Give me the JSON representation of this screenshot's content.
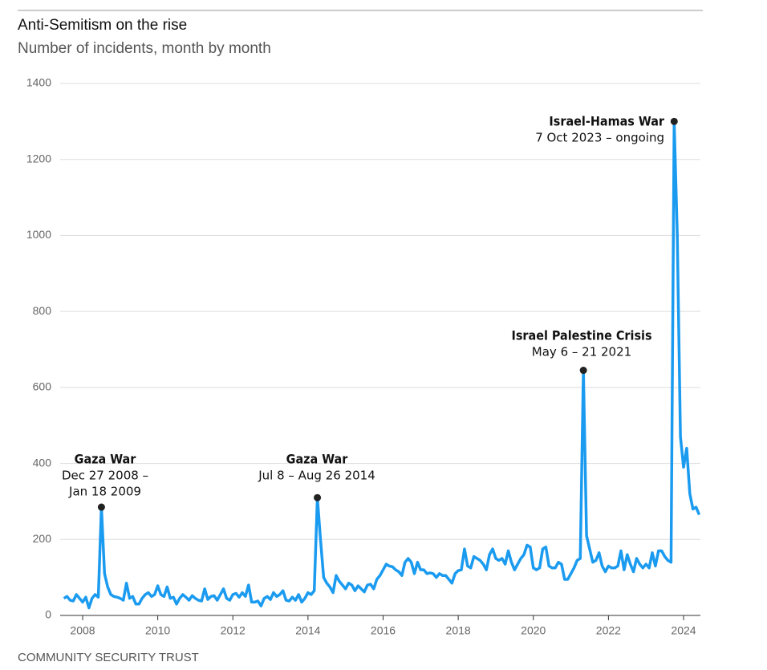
{
  "chart_data": {
    "type": "line",
    "title": "Anti-Semitism on the rise",
    "subtitle": "Number of incidents, month by month",
    "source": "COMMUNITY SECURITY TRUST",
    "xlim": [
      2007.5,
      2024.5
    ],
    "xticks": [
      2008,
      2010,
      2012,
      2014,
      2016,
      2018,
      2020,
      2022,
      2024
    ],
    "ylim": [
      0,
      1400
    ],
    "yticks": [
      0,
      200,
      400,
      600,
      800,
      1000,
      1200,
      1400
    ],
    "grid": true,
    "x": [
      2007.5,
      2007.583,
      2007.667,
      2007.75,
      2007.833,
      2007.917,
      2008,
      2008.083,
      2008.167,
      2008.25,
      2008.333,
      2008.417,
      2008.5,
      2008.583,
      2008.667,
      2008.75,
      2008.833,
      2008.917,
      2009,
      2009.083,
      2009.167,
      2009.25,
      2009.333,
      2009.417,
      2009.5,
      2009.583,
      2009.667,
      2009.75,
      2009.833,
      2009.917,
      2010,
      2010.083,
      2010.167,
      2010.25,
      2010.333,
      2010.417,
      2010.5,
      2010.583,
      2010.667,
      2010.75,
      2010.833,
      2010.917,
      2011,
      2011.083,
      2011.167,
      2011.25,
      2011.333,
      2011.417,
      2011.5,
      2011.583,
      2011.667,
      2011.75,
      2011.833,
      2011.917,
      2012,
      2012.083,
      2012.167,
      2012.25,
      2012.333,
      2012.417,
      2012.5,
      2012.583,
      2012.667,
      2012.75,
      2012.833,
      2012.917,
      2013,
      2013.083,
      2013.167,
      2013.25,
      2013.333,
      2013.417,
      2013.5,
      2013.583,
      2013.667,
      2013.75,
      2013.833,
      2013.917,
      2014,
      2014.083,
      2014.167,
      2014.25,
      2014.333,
      2014.417,
      2014.5,
      2014.583,
      2014.667,
      2014.75,
      2014.833,
      2014.917,
      2015,
      2015.083,
      2015.167,
      2015.25,
      2015.333,
      2015.417,
      2015.5,
      2015.583,
      2015.667,
      2015.75,
      2015.833,
      2015.917,
      2016,
      2016.083,
      2016.167,
      2016.25,
      2016.333,
      2016.417,
      2016.5,
      2016.583,
      2016.667,
      2016.75,
      2016.833,
      2016.917,
      2017,
      2017.083,
      2017.167,
      2017.25,
      2017.333,
      2017.417,
      2017.5,
      2017.583,
      2017.667,
      2017.75,
      2017.833,
      2017.917,
      2018,
      2018.083,
      2018.167,
      2018.25,
      2018.333,
      2018.417,
      2018.5,
      2018.583,
      2018.667,
      2018.75,
      2018.833,
      2018.917,
      2019,
      2019.083,
      2019.167,
      2019.25,
      2019.333,
      2019.417,
      2019.5,
      2019.583,
      2019.667,
      2019.75,
      2019.833,
      2019.917,
      2020,
      2020.083,
      2020.167,
      2020.25,
      2020.333,
      2020.417,
      2020.5,
      2020.583,
      2020.667,
      2020.75,
      2020.833,
      2020.917,
      2021,
      2021.083,
      2021.167,
      2021.25,
      2021.333,
      2021.417,
      2021.5,
      2021.583,
      2021.667,
      2021.75,
      2021.833,
      2021.917,
      2022,
      2022.083,
      2022.167,
      2022.25,
      2022.333,
      2022.417,
      2022.5,
      2022.583,
      2022.667,
      2022.75,
      2022.833,
      2022.917,
      2023,
      2023.083,
      2023.167,
      2023.25,
      2023.333,
      2023.417,
      2023.5,
      2023.583,
      2023.667,
      2023.75,
      2023.833,
      2023.917,
      2024,
      2024.083,
      2024.167,
      2024.25,
      2024.333,
      2024.417
    ],
    "series": [
      {
        "color": "#1b9bf0",
        "values": [
          45,
          50,
          40,
          38,
          55,
          45,
          35,
          48,
          20,
          45,
          55,
          48,
          285,
          110,
          75,
          55,
          50,
          48,
          45,
          40,
          85,
          45,
          50,
          30,
          30,
          45,
          55,
          60,
          50,
          55,
          78,
          55,
          50,
          75,
          45,
          48,
          30,
          45,
          55,
          48,
          40,
          52,
          45,
          40,
          38,
          70,
          42,
          50,
          52,
          40,
          55,
          70,
          45,
          40,
          55,
          58,
          48,
          60,
          50,
          80,
          35,
          35,
          38,
          25,
          45,
          50,
          42,
          60,
          50,
          55,
          65,
          40,
          38,
          48,
          40,
          55,
          35,
          45,
          60,
          55,
          65,
          310,
          200,
          100,
          85,
          75,
          60,
          105,
          90,
          80,
          70,
          85,
          80,
          65,
          78,
          70,
          62,
          80,
          82,
          70,
          95,
          105,
          120,
          135,
          130,
          128,
          120,
          115,
          105,
          140,
          150,
          140,
          110,
          140,
          120,
          120,
          110,
          112,
          110,
          100,
          110,
          105,
          105,
          95,
          85,
          110,
          118,
          120,
          175,
          130,
          125,
          155,
          150,
          145,
          135,
          120,
          160,
          175,
          150,
          145,
          150,
          135,
          170,
          140,
          120,
          135,
          150,
          160,
          185,
          180,
          125,
          120,
          125,
          175,
          180,
          130,
          125,
          125,
          140,
          135,
          95,
          95,
          110,
          125,
          145,
          150,
          645,
          210,
          175,
          140,
          145,
          165,
          130,
          115,
          130,
          125,
          125,
          130,
          170,
          120,
          160,
          135,
          115,
          150,
          135,
          125,
          135,
          125,
          165,
          130,
          170,
          170,
          155,
          145,
          140,
          1300,
          1000,
          470,
          390,
          440,
          320,
          280,
          285,
          265
        ]
      }
    ],
    "annotations": [
      {
        "title": "Gaza War",
        "lines": [
          "Dec 27 2008 –",
          "Jan 18 2009"
        ]
      },
      {
        "title": "Gaza War",
        "lines": [
          "Jul 8 – Aug 26 2014"
        ]
      },
      {
        "title": "Israel Palestine Crisis",
        "lines": [
          "May 6 – 21 2021"
        ]
      },
      {
        "title": "Israel-Hamas War",
        "lines": [
          "7 Oct 2023 – ongoing"
        ]
      }
    ]
  }
}
